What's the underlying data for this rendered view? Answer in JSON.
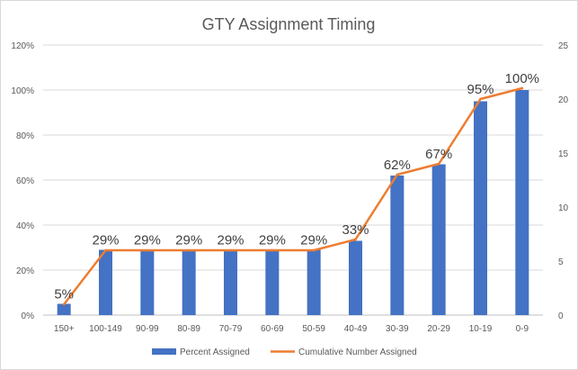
{
  "chart_data": {
    "type": "bar",
    "title": "GTY Assignment Timing",
    "categories": [
      "150+",
      "100-149",
      "90-99",
      "80-89",
      "70-79",
      "60-69",
      "50-59",
      "40-49",
      "30-39",
      "20-29",
      "10-19",
      "0-9"
    ],
    "series": [
      {
        "name": "Percent Assigned",
        "type": "bar",
        "axis": "left",
        "color": "#4472C4",
        "values": [
          5,
          29,
          29,
          29,
          29,
          29,
          29,
          33,
          62,
          67,
          95,
          100
        ],
        "labels": [
          "5%",
          "29%",
          "29%",
          "29%",
          "29%",
          "29%",
          "29%",
          "33%",
          "62%",
          "67%",
          "95%",
          "100%"
        ]
      },
      {
        "name": "Cumulative Number Assigned",
        "type": "line",
        "axis": "right",
        "color": "#ED7D31",
        "values": [
          1,
          6,
          6,
          6,
          6,
          6,
          6,
          7,
          13,
          14,
          20,
          21
        ]
      }
    ],
    "y_left": {
      "ylim": [
        0,
        120
      ],
      "ticks": [
        "0%",
        "20%",
        "40%",
        "60%",
        "80%",
        "100%",
        "120%"
      ]
    },
    "y_right": {
      "ylim": [
        0,
        25
      ],
      "ticks": [
        "0",
        "5",
        "10",
        "15",
        "20",
        "25"
      ]
    },
    "grid": true,
    "legend": "bottom"
  }
}
